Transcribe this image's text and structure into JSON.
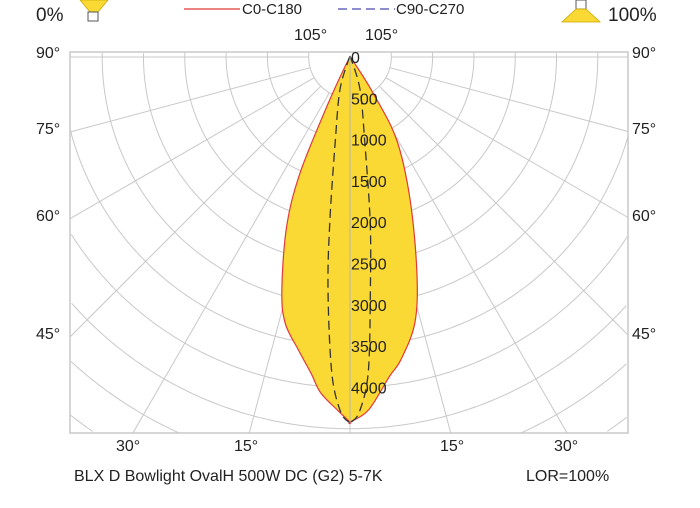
{
  "chart_data": {
    "type": "polar",
    "title": "BLX D Bowlight OvalH 500W DC (G2) 5-7K",
    "lor_label": "LOR=100%",
    "header": {
      "left_pct": "0%",
      "right_pct": "100%"
    },
    "legend": [
      {
        "name": "C0-C180",
        "color": "#e03a3a",
        "style": "solid"
      },
      {
        "name": "C90-C270",
        "color": "#4a4ab0",
        "style": "dashed"
      }
    ],
    "radial_unit": "cd",
    "radial_ticks": [
      0,
      500,
      1000,
      1500,
      2000,
      2500,
      3000,
      3500,
      4000
    ],
    "radial_labels": [
      "0",
      "500",
      "1000",
      "1500",
      "2000",
      "2500",
      "3000",
      "3500",
      "4000"
    ],
    "angle_step_deg": 15,
    "angle_labels": {
      "top": [
        "105°",
        "105°"
      ],
      "left": [
        "90°",
        "75°",
        "60°",
        "45°"
      ],
      "right": [
        "90°",
        "75°",
        "60°",
        "45°"
      ],
      "bottom": [
        "30°",
        "15°",
        "15°",
        "30°"
      ]
    },
    "fill_color": "#fbd934",
    "series": [
      {
        "name": "C0-C180",
        "left_side_C180": {
          "angles": [
            0,
            2,
            5,
            7,
            10,
            13.7,
            16.3,
            20.5,
            23.3,
            25,
            27,
            30
          ],
          "values": [
            4420,
            4280,
            4080,
            3860,
            3600,
            3315,
            2940,
            2190,
            1530,
            680,
            200,
            0
          ]
        },
        "right_side_C0": {
          "angles": [
            0,
            3,
            7,
            9.5,
            13.7,
            17.2,
            22.8,
            29.4,
            32.6,
            36,
            38
          ],
          "values": [
            4420,
            4280,
            3900,
            3720,
            3315,
            2740,
            1880,
            1150,
            520,
            100,
            0
          ]
        }
      },
      {
        "name": "C90-C270",
        "left_side_C270": {
          "angles": [
            0,
            1.5,
            3.3,
            5.4,
            7,
            10,
            17,
            25,
            30
          ],
          "values": [
            4430,
            4300,
            3830,
            2830,
            2000,
            1020,
            420,
            50,
            0
          ]
        },
        "right_side_C90": {
          "angles": [
            0,
            1.5,
            3.3,
            5,
            7,
            10,
            17,
            25,
            30
          ],
          "values": [
            4430,
            4300,
            3830,
            2830,
            2000,
            1020,
            420,
            50,
            0
          ]
        }
      }
    ]
  }
}
